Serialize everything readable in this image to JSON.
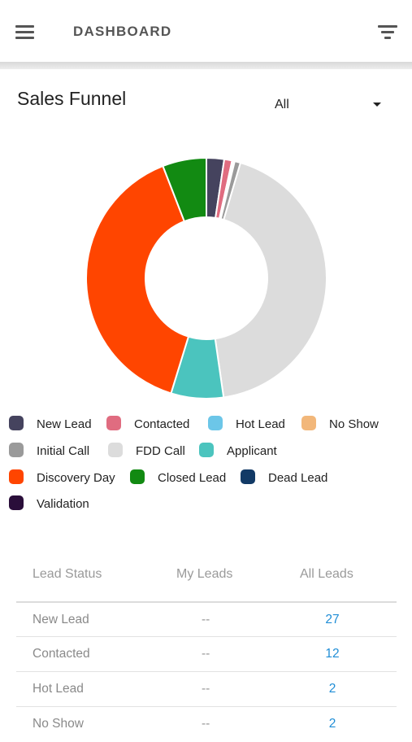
{
  "header": {
    "title": "DASHBOARD",
    "menu_icon": "hamburger-menu-icon",
    "filter_icon": "filter-icon"
  },
  "sales_funnel": {
    "title": "Sales Funnel",
    "filter_value": "All"
  },
  "chart_data": {
    "type": "pie",
    "variant": "doughnut",
    "labels": [
      "New Lead",
      "Contacted",
      "Hot Lead",
      "No Show",
      "Initial Call",
      "FDD Call",
      "Applicant",
      "Discovery Day",
      "Closed Lead",
      "Dead Lead",
      "Validation"
    ],
    "values": [
      27,
      12,
      2,
      2,
      9,
      490,
      80,
      447,
      67,
      0,
      0
    ],
    "colors": [
      "#45435e",
      "#e06c80",
      "#6cc6e8",
      "#f2b77a",
      "#9a9a9a",
      "#dcdcdc",
      "#4bc4be",
      "#ff4500",
      "#128a12",
      "#123a66",
      "#2a0e3a"
    ],
    "legend_position": "bottom"
  },
  "legend": [
    {
      "label": "New Lead",
      "color": "#45435e"
    },
    {
      "label": "Contacted",
      "color": "#e06c80"
    },
    {
      "label": "Hot Lead",
      "color": "#6cc6e8"
    },
    {
      "label": "No Show",
      "color": "#f2b77a"
    },
    {
      "label": "Initial Call",
      "color": "#9a9a9a"
    },
    {
      "label": "FDD Call",
      "color": "#dcdcdc"
    },
    {
      "label": "Applicant",
      "color": "#4bc4be"
    },
    {
      "label": "Discovery Day",
      "color": "#ff4500"
    },
    {
      "label": "Closed Lead",
      "color": "#128a12"
    },
    {
      "label": "Dead Lead",
      "color": "#123a66"
    },
    {
      "label": "Validation",
      "color": "#2a0e3a"
    }
  ],
  "table": {
    "headers": [
      "Lead Status",
      "My Leads",
      "All Leads"
    ],
    "rows": [
      {
        "status": "New Lead",
        "my": "--",
        "all": "27"
      },
      {
        "status": "Contacted",
        "my": "--",
        "all": "12"
      },
      {
        "status": "Hot Lead",
        "my": "--",
        "all": "2"
      },
      {
        "status": "No Show",
        "my": "--",
        "all": "2"
      }
    ]
  }
}
